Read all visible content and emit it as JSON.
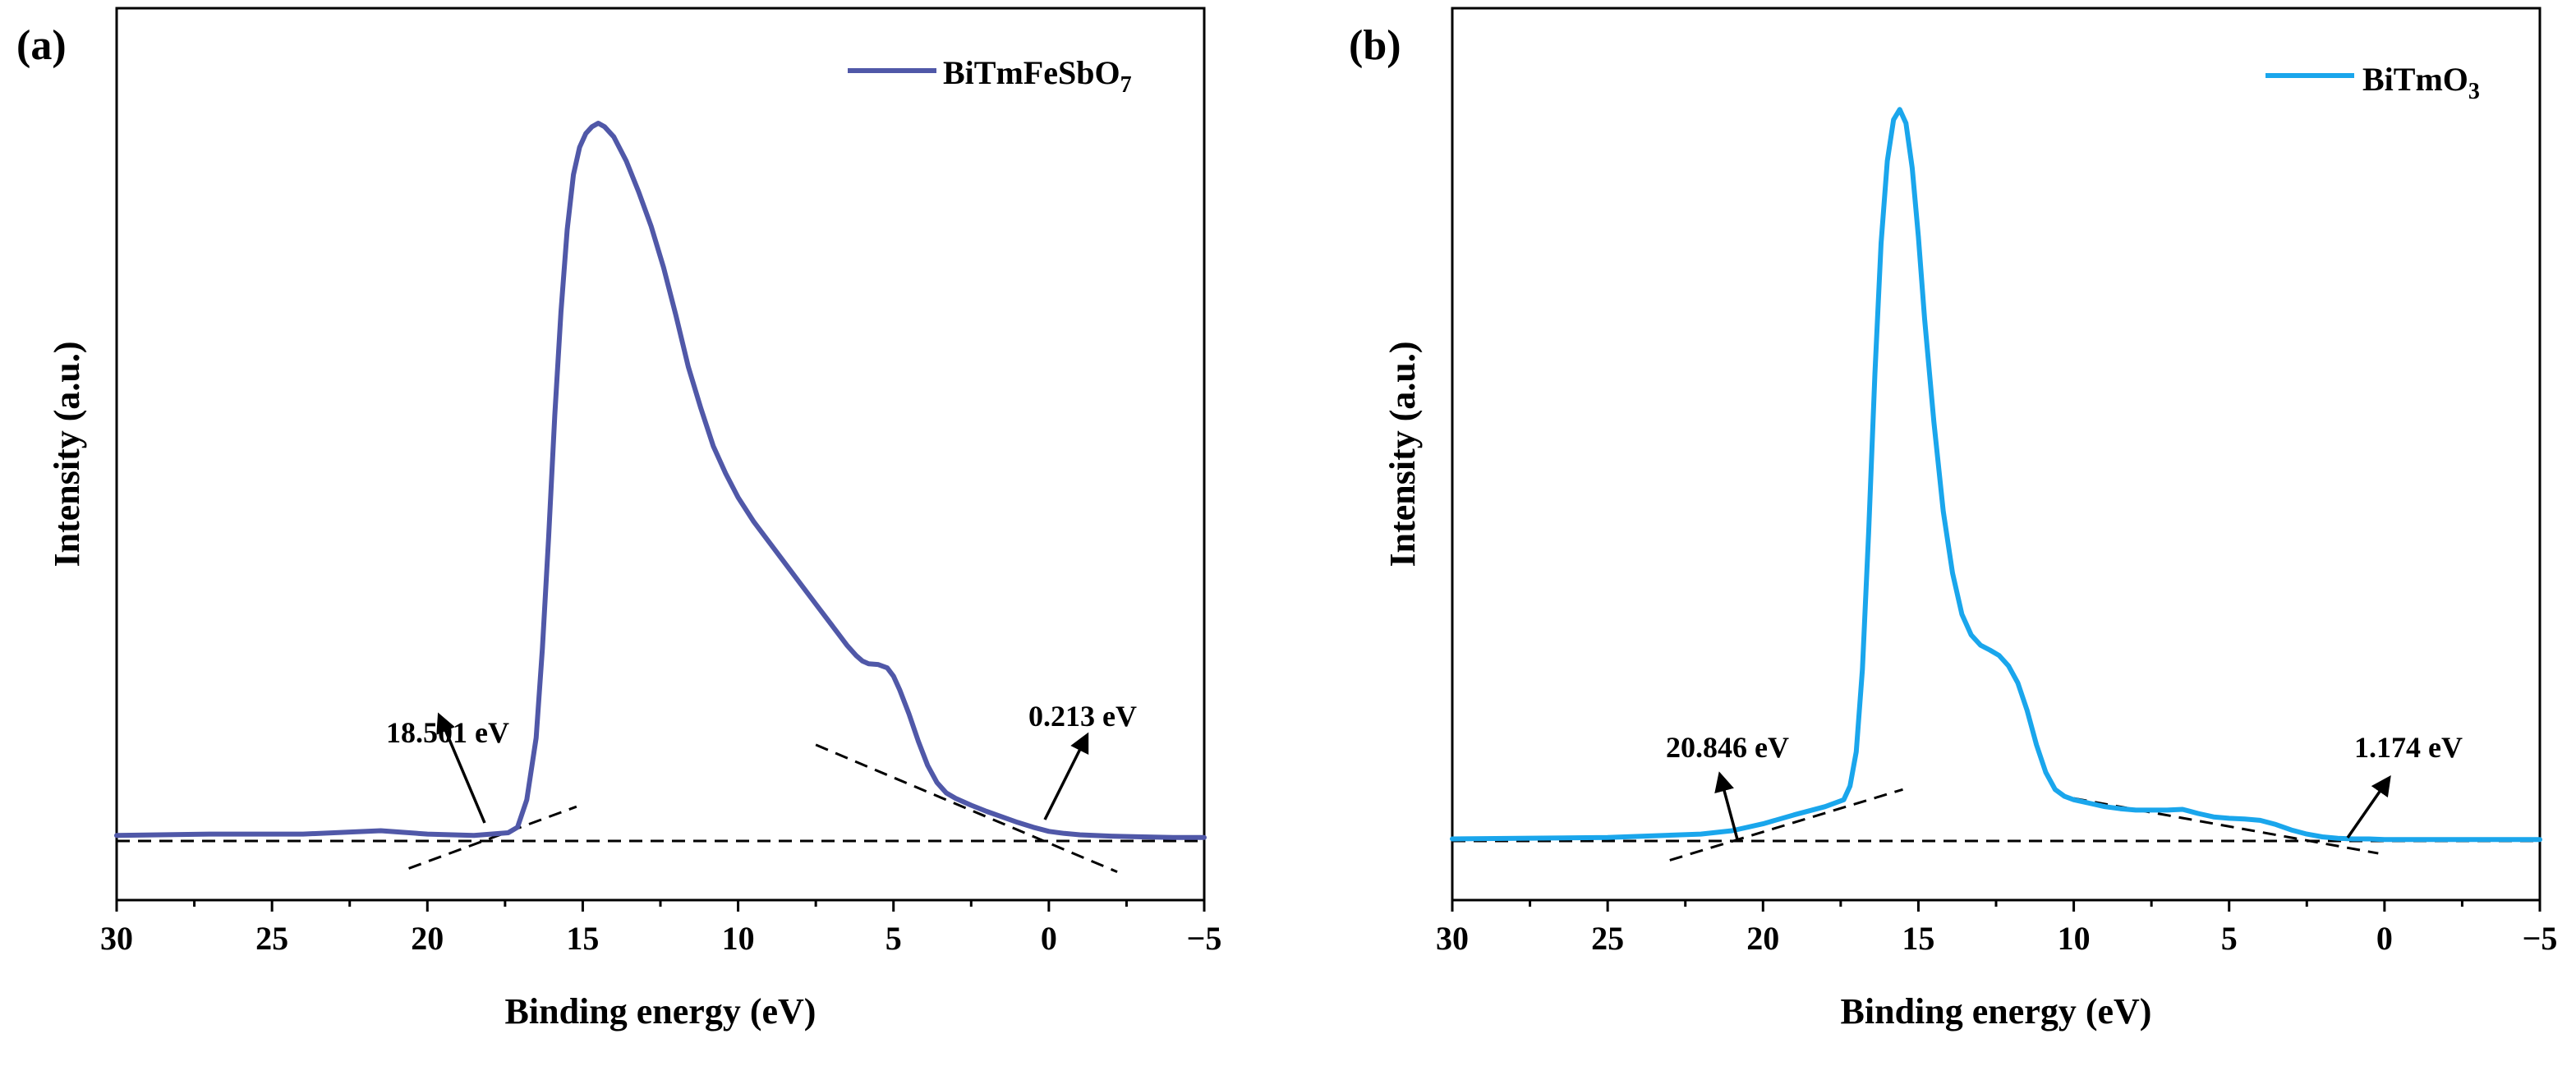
{
  "chart_data": [
    {
      "panel_label": "(a)",
      "type": "line",
      "xlabel": "Binding energy (eV)",
      "ylabel": "Intensity (a.u.)",
      "xlim": [
        30,
        -5
      ],
      "xticks": [
        30,
        25,
        20,
        15,
        10,
        5,
        0,
        -5
      ],
      "xtick_labels": [
        "30",
        "25",
        "20",
        "15",
        "10",
        "5",
        "0",
        "−5"
      ],
      "ylim": [
        0,
        1.16
      ],
      "yticks_shown": false,
      "legend": {
        "position": "top-right",
        "base": "BiTmFeSbO",
        "subscript": "7"
      },
      "series": [
        {
          "name": "BiTmFeSbO7",
          "color": "#5058a8",
          "x": [
            30,
            27,
            24,
            21.5,
            20,
            18.5,
            17.4,
            17.1,
            16.8,
            16.5,
            16.3,
            16.1,
            15.9,
            15.7,
            15.5,
            15.3,
            15.1,
            14.9,
            14.7,
            14.5,
            14.3,
            14.0,
            13.6,
            13.2,
            12.8,
            12.4,
            12.0,
            11.6,
            11.2,
            10.8,
            10.4,
            10.0,
            9.5,
            9.0,
            8.5,
            8.0,
            7.5,
            7.0,
            6.5,
            6.2,
            6.0,
            5.8,
            5.5,
            5.2,
            5.0,
            4.8,
            4.5,
            4.2,
            3.9,
            3.6,
            3.3,
            3.0,
            2.5,
            2.0,
            1.5,
            1.0,
            0.5,
            0.0,
            -0.5,
            -1.0,
            -2.0,
            -3.0,
            -4.0,
            -5.0
          ],
          "y": [
            0.008,
            0.01,
            0.01,
            0.015,
            0.01,
            0.008,
            0.012,
            0.02,
            0.06,
            0.15,
            0.28,
            0.44,
            0.62,
            0.77,
            0.89,
            0.97,
            1.01,
            1.03,
            1.04,
            1.045,
            1.04,
            1.025,
            0.99,
            0.945,
            0.895,
            0.835,
            0.765,
            0.69,
            0.63,
            0.575,
            0.535,
            0.5,
            0.465,
            0.435,
            0.405,
            0.375,
            0.345,
            0.315,
            0.285,
            0.27,
            0.262,
            0.258,
            0.257,
            0.252,
            0.24,
            0.22,
            0.185,
            0.145,
            0.11,
            0.085,
            0.07,
            0.062,
            0.052,
            0.043,
            0.035,
            0.027,
            0.02,
            0.014,
            0.011,
            0.009,
            0.007,
            0.006,
            0.005,
            0.005
          ]
        }
      ],
      "baseline_y": 0.0,
      "tangent_lines": [
        {
          "x1": 20.6,
          "y1": -0.04,
          "x2": 15.2,
          "y2": 0.05
        },
        {
          "x1": 7.5,
          "y1": 0.14,
          "x2": -2.2,
          "y2": -0.045
        }
      ],
      "annotations": [
        {
          "text": "18.501 eV",
          "x": 18.501
        },
        {
          "text": "0.213 eV",
          "x": 0.213
        }
      ]
    },
    {
      "panel_label": "(b)",
      "type": "line",
      "xlabel": "Binding energy (eV)",
      "ylabel": "Intensity (a.u.)",
      "xlim": [
        30,
        -5
      ],
      "xticks": [
        30,
        25,
        20,
        15,
        10,
        5,
        0,
        -5
      ],
      "xtick_labels": [
        "30",
        "25",
        "20",
        "15",
        "10",
        "5",
        "0",
        "−5"
      ],
      "ylim": [
        0,
        1.16
      ],
      "yticks_shown": false,
      "legend": {
        "position": "top-right",
        "base": "BiTmO",
        "subscript": "3"
      },
      "series": [
        {
          "name": "BiTmO3",
          "color": "#1aa6ec",
          "x": [
            30,
            25,
            22,
            21,
            20,
            19,
            18,
            17.4,
            17.2,
            17.0,
            16.8,
            16.6,
            16.4,
            16.2,
            16.0,
            15.8,
            15.6,
            15.4,
            15.2,
            15.0,
            14.8,
            14.5,
            14.2,
            13.9,
            13.6,
            13.3,
            13.0,
            12.7,
            12.4,
            12.1,
            11.8,
            11.5,
            11.2,
            10.9,
            10.6,
            10.3,
            10.0,
            9.5,
            9.0,
            8.5,
            8.0,
            7.5,
            7.0,
            6.5,
            6.0,
            5.5,
            5.0,
            4.5,
            4.0,
            3.5,
            3.0,
            2.5,
            2.0,
            1.5,
            1.0,
            0.5,
            0.0,
            -1.0,
            -2.0,
            -3.0,
            -4.0,
            -5.0
          ],
          "y": [
            0.003,
            0.005,
            0.01,
            0.015,
            0.025,
            0.038,
            0.05,
            0.06,
            0.08,
            0.13,
            0.25,
            0.45,
            0.68,
            0.87,
            0.99,
            1.05,
            1.065,
            1.045,
            0.98,
            0.88,
            0.76,
            0.61,
            0.48,
            0.39,
            0.33,
            0.3,
            0.285,
            0.278,
            0.27,
            0.255,
            0.23,
            0.19,
            0.14,
            0.1,
            0.075,
            0.065,
            0.06,
            0.055,
            0.05,
            0.047,
            0.045,
            0.045,
            0.045,
            0.046,
            0.04,
            0.035,
            0.033,
            0.032,
            0.03,
            0.024,
            0.016,
            0.01,
            0.006,
            0.004,
            0.003,
            0.003,
            0.002,
            0.002,
            0.002,
            0.002,
            0.002,
            0.002
          ]
        }
      ],
      "baseline_y": 0.0,
      "tangent_lines": [
        {
          "x1": 23.0,
          "y1": -0.028,
          "x2": 15.5,
          "y2": 0.075
        },
        {
          "x1": 10.0,
          "y1": 0.062,
          "x2": 0.2,
          "y2": -0.018
        }
      ],
      "annotations": [
        {
          "text": "20.846 eV",
          "x": 20.846
        },
        {
          "text": "1.174 eV",
          "x": 1.174
        }
      ]
    }
  ]
}
